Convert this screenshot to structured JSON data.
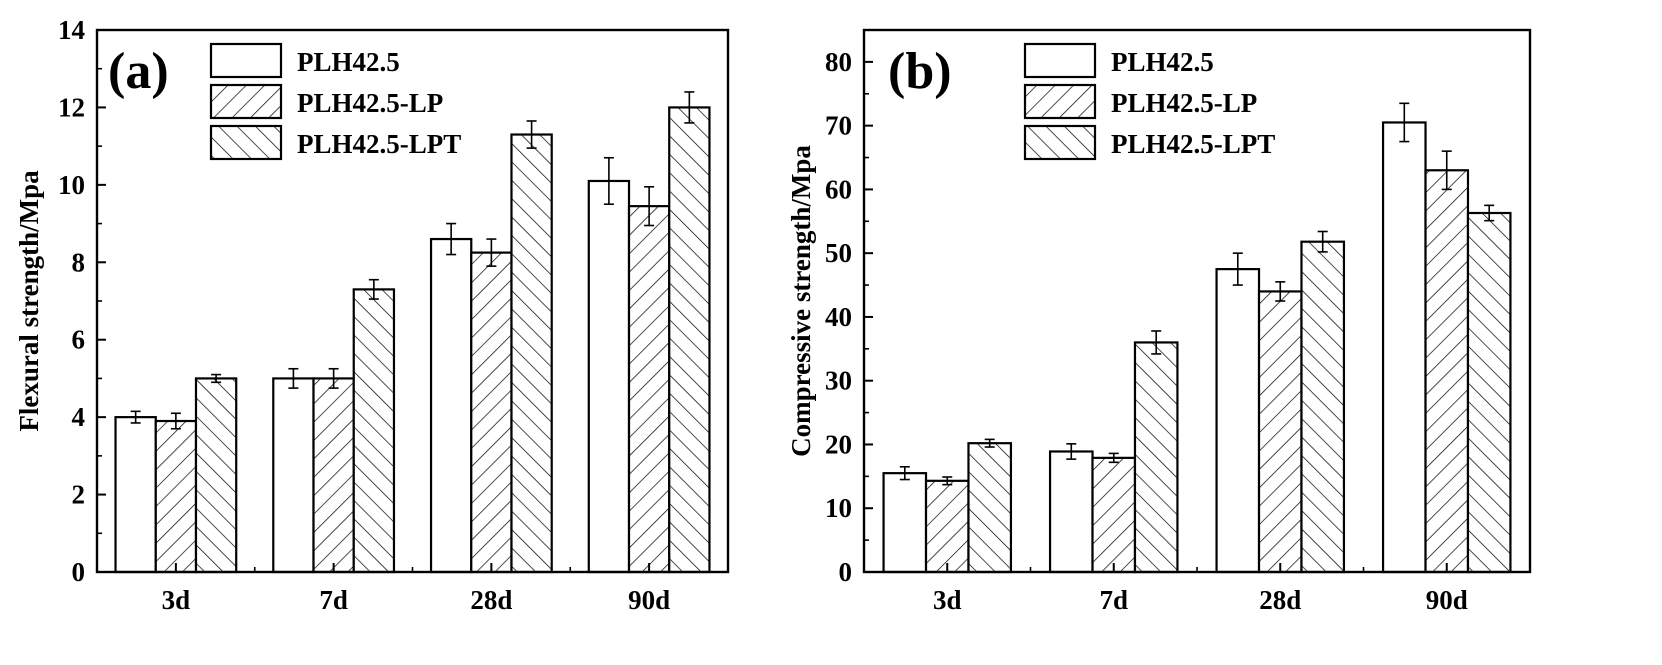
{
  "chart_data": [
    {
      "panel_label": "(a)",
      "type": "bar",
      "title": "",
      "xlabel": "",
      "ylabel": "Flexural strength/Mpa",
      "ylim": [
        0,
        14
      ],
      "yticks": [
        0,
        2,
        4,
        6,
        8,
        10,
        12,
        14
      ],
      "categories": [
        "3d",
        "7d",
        "28d",
        "90d"
      ],
      "series": [
        {
          "name": "PLH42.5",
          "pattern": "none",
          "values": [
            4.0,
            5.0,
            8.6,
            10.1
          ],
          "errors": [
            0.15,
            0.25,
            0.4,
            0.6
          ]
        },
        {
          "name": "PLH42.5-LP",
          "pattern": "forward-hatch",
          "values": [
            3.9,
            5.0,
            8.25,
            9.45
          ],
          "errors": [
            0.2,
            0.25,
            0.35,
            0.5
          ]
        },
        {
          "name": "PLH42.5-LPT",
          "pattern": "back-hatch",
          "values": [
            5.0,
            7.3,
            11.3,
            12.0
          ],
          "errors": [
            0.1,
            0.25,
            0.35,
            0.4
          ]
        }
      ],
      "legend_position": "top-left",
      "grid": false
    },
    {
      "panel_label": "(b)",
      "type": "bar",
      "title": "",
      "xlabel": "",
      "ylabel": "Compressive strength/Mpa",
      "ylim": [
        0,
        85
      ],
      "yticks": [
        0,
        10,
        20,
        30,
        40,
        50,
        60,
        70,
        80
      ],
      "categories": [
        "3d",
        "7d",
        "28d",
        "90d"
      ],
      "series": [
        {
          "name": "PLH42.5",
          "pattern": "none",
          "values": [
            15.5,
            18.9,
            47.5,
            70.5
          ],
          "errors": [
            1.0,
            1.2,
            2.5,
            3.0
          ]
        },
        {
          "name": "PLH42.5-LP",
          "pattern": "forward-hatch",
          "values": [
            14.3,
            17.9,
            44.0,
            63.0
          ],
          "errors": [
            0.6,
            0.7,
            1.5,
            3.0
          ]
        },
        {
          "name": "PLH42.5-LPT",
          "pattern": "back-hatch",
          "values": [
            20.2,
            36.0,
            51.8,
            56.3
          ],
          "errors": [
            0.6,
            1.8,
            1.6,
            1.2
          ]
        }
      ],
      "legend_position": "top-left",
      "grid": false
    }
  ]
}
